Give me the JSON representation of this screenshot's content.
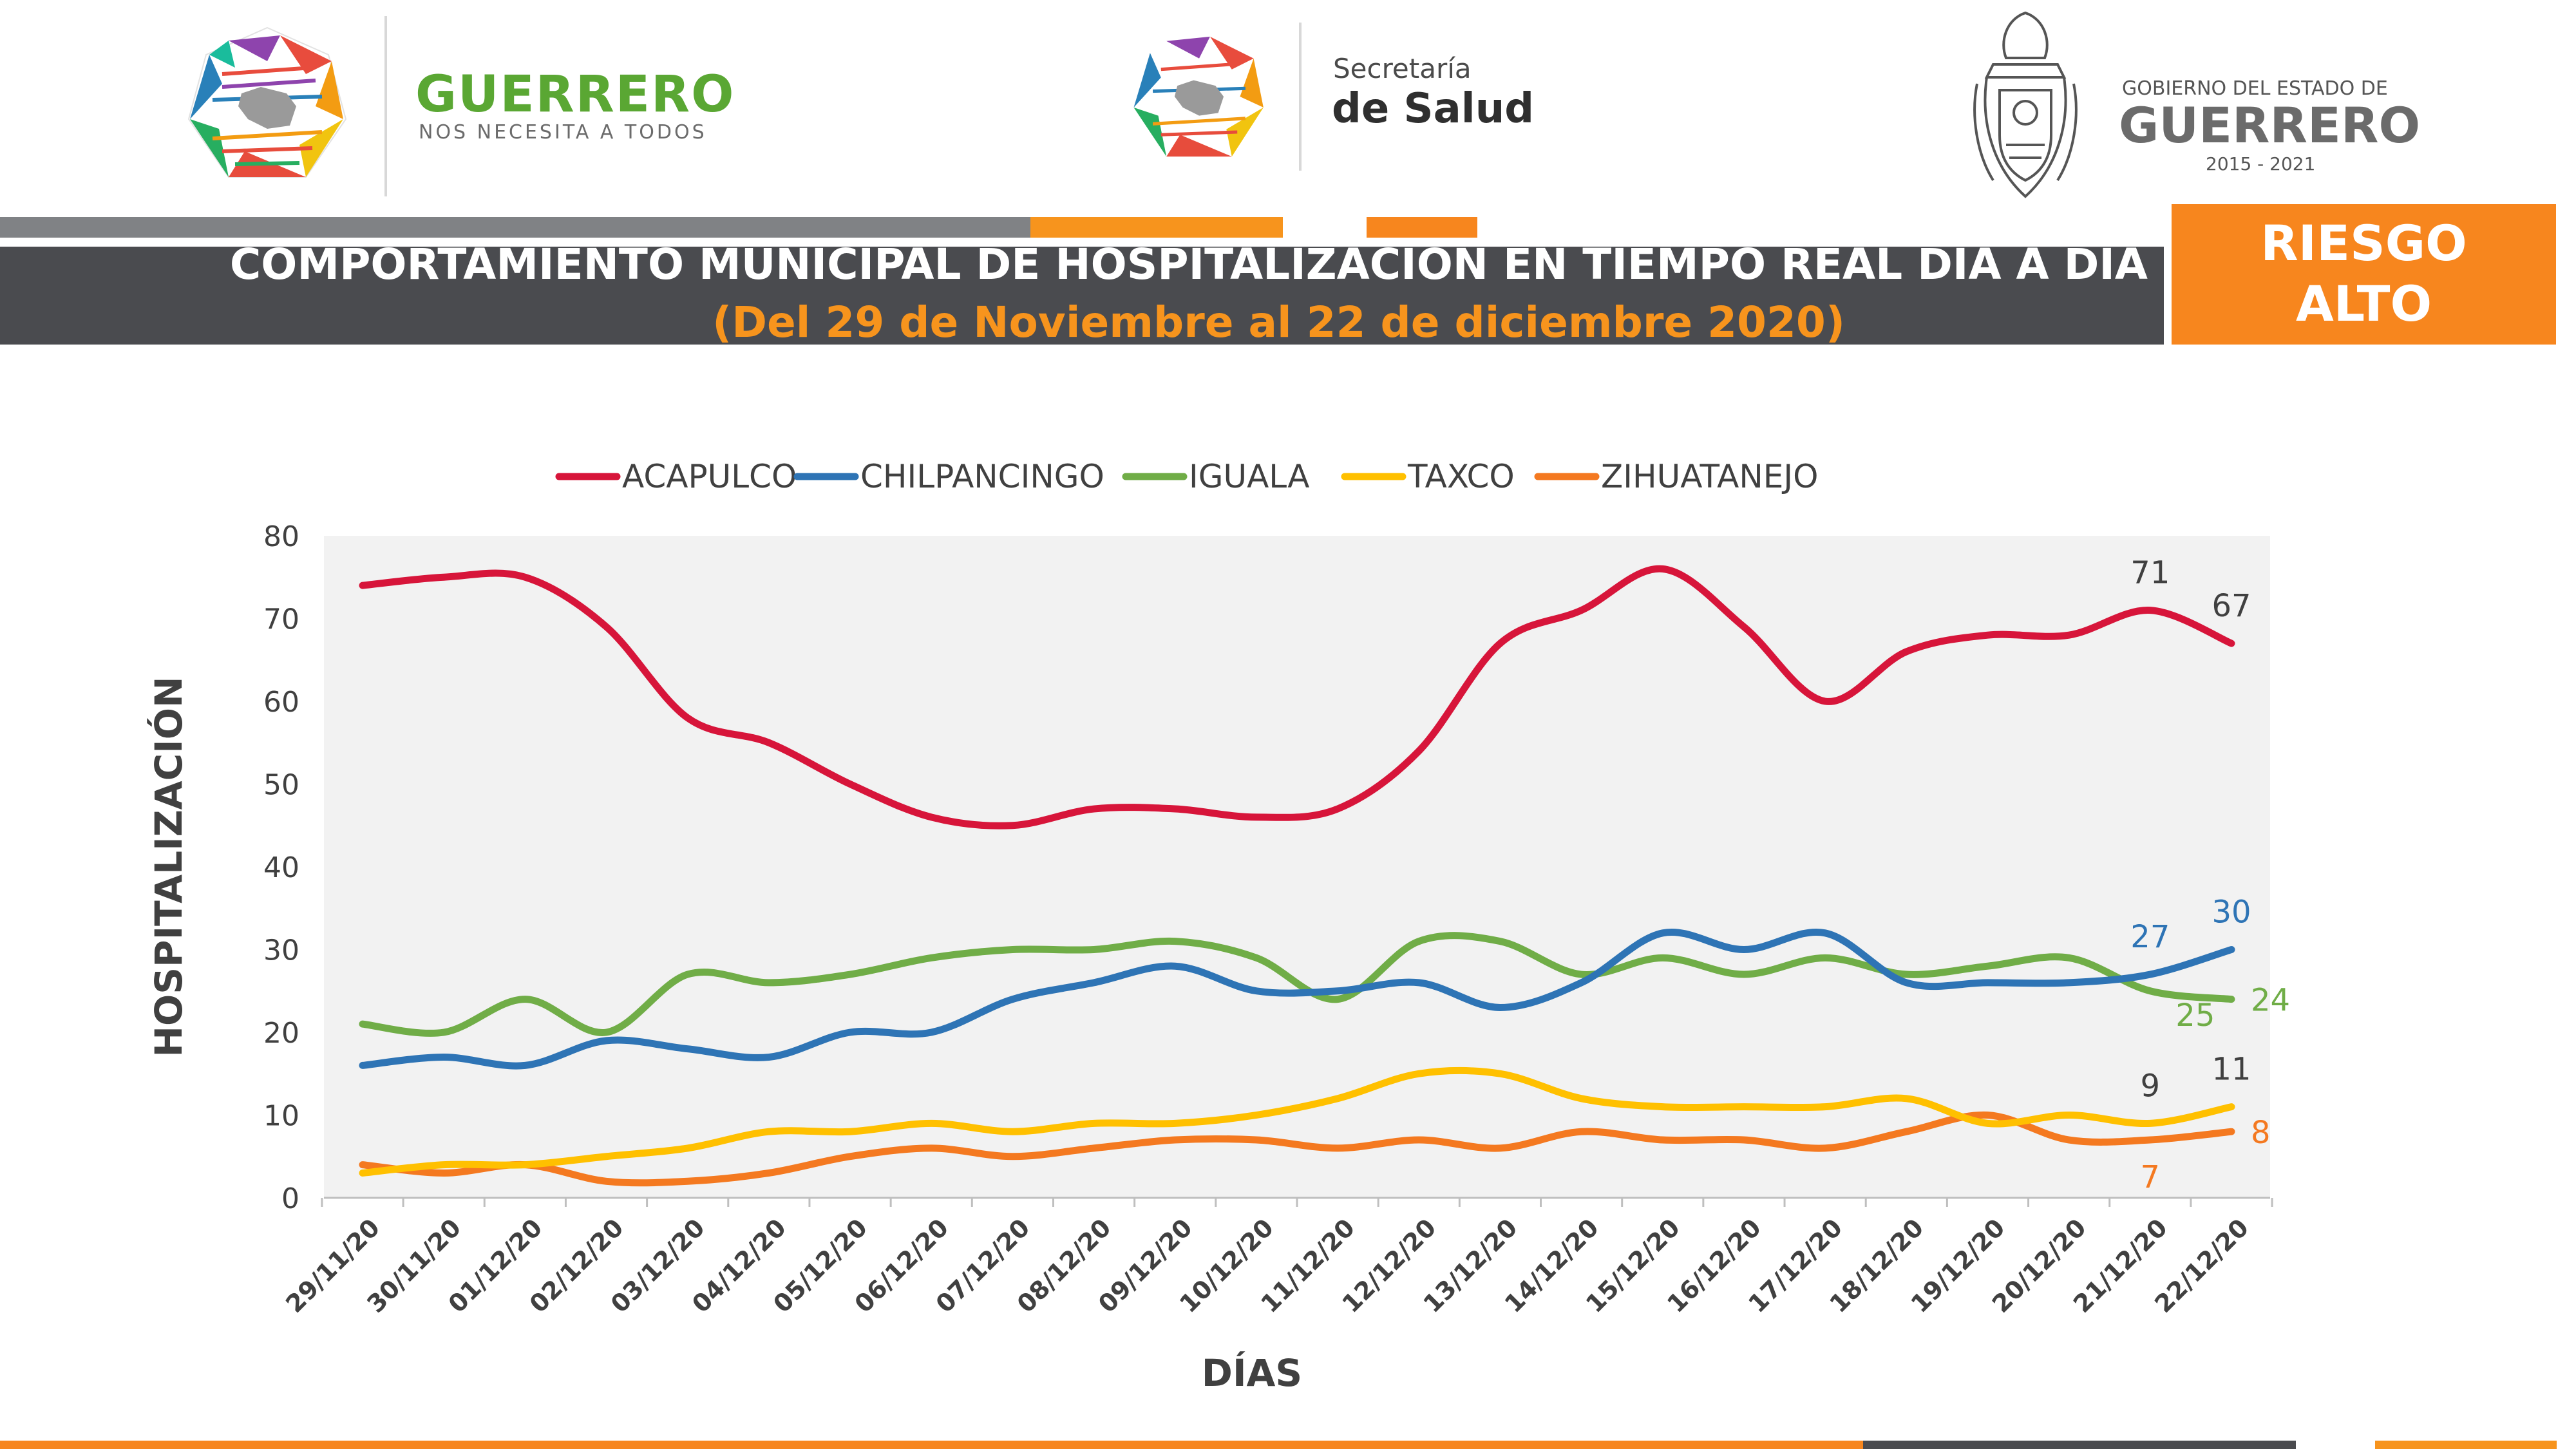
{
  "header": {
    "logo1": {
      "title": "GUERRERO",
      "subtitle": "NOS NECESITA A TODOS"
    },
    "logo2": {
      "line1": "Secretaría",
      "line2": "de Salud"
    },
    "logo3": {
      "line1": "GOBIERNO DEL ESTADO DE",
      "line2": "GUERRERO",
      "line3": "2015 - 2021"
    }
  },
  "banner": {
    "title": "COMPORTAMIENTO MUNICIPAL DE HOSPITALIZACIÓN EN TIEMPO REAL DÍA A DÍA",
    "subtitle": "(Del 29 de Noviembre al 22 de diciembre 2020)",
    "risk_line1": "RIESGO",
    "risk_line2": "ALTO"
  },
  "colors": {
    "banner_dark": "#4a4b4f",
    "bar_gray": "#808285",
    "accent_orange": "#f7941d",
    "risk_orange": "#f7861e",
    "plot_bg": "#f2f2f2"
  },
  "chart_data": {
    "type": "line",
    "xlabel": "DÍAS",
    "ylabel": "HOSPITALIZACIÓN",
    "ylim": [
      0,
      80
    ],
    "yticks": [
      0,
      10,
      20,
      30,
      40,
      50,
      60,
      70,
      80
    ],
    "legend_position": "top",
    "categories": [
      "29/11/20",
      "30/11/20",
      "01/12/20",
      "02/12/20",
      "03/12/20",
      "04/12/20",
      "05/12/20",
      "06/12/20",
      "07/12/20",
      "08/12/20",
      "09/12/20",
      "10/12/20",
      "11/12/20",
      "12/12/20",
      "13/12/20",
      "14/12/20",
      "15/12/20",
      "16/12/20",
      "17/12/20",
      "18/12/20",
      "19/12/20",
      "20/12/20",
      "21/12/20",
      "22/12/20"
    ],
    "series": [
      {
        "name": "ACAPULCO",
        "color": "#d7153a",
        "labelColor": "#404040",
        "values": [
          74,
          75,
          75,
          69,
          58,
          55,
          50,
          46,
          45,
          47,
          47,
          46,
          47,
          54,
          67,
          71,
          76,
          69,
          60,
          66,
          68,
          68,
          71,
          67
        ],
        "labels": [
          {
            "index": 22,
            "text": "71",
            "pos": "above"
          },
          {
            "index": 23,
            "text": "67",
            "pos": "above"
          }
        ]
      },
      {
        "name": "CHILPANCINGO",
        "color": "#2e74b5",
        "labelColor": "#2e74b5",
        "values": [
          16,
          17,
          16,
          19,
          18,
          17,
          20,
          20,
          24,
          26,
          28,
          25,
          25,
          26,
          23,
          26,
          32,
          30,
          32,
          26,
          26,
          26,
          27,
          30
        ],
        "labels": [
          {
            "index": 22,
            "text": "27",
            "pos": "above"
          },
          {
            "index": 23,
            "text": "30",
            "pos": "above"
          }
        ]
      },
      {
        "name": "IGUALA",
        "color": "#70ad47",
        "labelColor": "#70ad47",
        "values": [
          21,
          20,
          24,
          20,
          27,
          26,
          27,
          29,
          30,
          30,
          31,
          29,
          24,
          31,
          31,
          27,
          29,
          27,
          29,
          27,
          28,
          29,
          25,
          24
        ],
        "labels": [
          {
            "index": 22,
            "text": "25",
            "pos": "below"
          },
          {
            "index": 23,
            "text": "24",
            "pos": "right"
          }
        ]
      },
      {
        "name": "TAXCO",
        "color": "#ffc000",
        "labelColor": "#404040",
        "values": [
          3,
          4,
          4,
          5,
          6,
          8,
          8,
          9,
          8,
          9,
          9,
          10,
          12,
          15,
          15,
          12,
          11,
          11,
          11,
          12,
          9,
          10,
          9,
          11
        ],
        "labels": [
          {
            "index": 22,
            "text": "9",
            "pos": "above"
          },
          {
            "index": 23,
            "text": "11",
            "pos": "above"
          }
        ]
      },
      {
        "name": "ZIHUATANEJO",
        "color": "#f47920",
        "labelColor": "#f47920",
        "values": [
          4,
          3,
          4,
          2,
          2,
          3,
          5,
          6,
          5,
          6,
          7,
          7,
          6,
          7,
          6,
          8,
          7,
          7,
          6,
          8,
          10,
          7,
          7,
          8
        ],
        "labels": [
          {
            "index": 22,
            "text": "7",
            "pos": "below"
          },
          {
            "index": 23,
            "text": "8",
            "pos": "right"
          }
        ]
      }
    ]
  }
}
